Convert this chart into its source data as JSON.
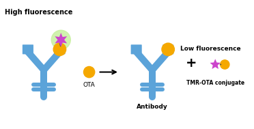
{
  "bg_color": "#ffffff",
  "antibody_color": "#5ba3d9",
  "antibody_dark": "#4a8fc0",
  "ota_color": "#f5a800",
  "tmr_color": "#cc44cc",
  "glow_color": "#c8f0a0",
  "title": "",
  "high_fluor_text": "High fluorescence",
  "low_fluor_text": "Low fluorescence",
  "ota_label": "OTA",
  "antibody_label": "Antibody",
  "tmr_label": "TMR-OTA conjugate",
  "plus_sign": "+",
  "arrow_color": "#000000",
  "figsize": [
    3.72,
    1.89
  ],
  "dpi": 100
}
